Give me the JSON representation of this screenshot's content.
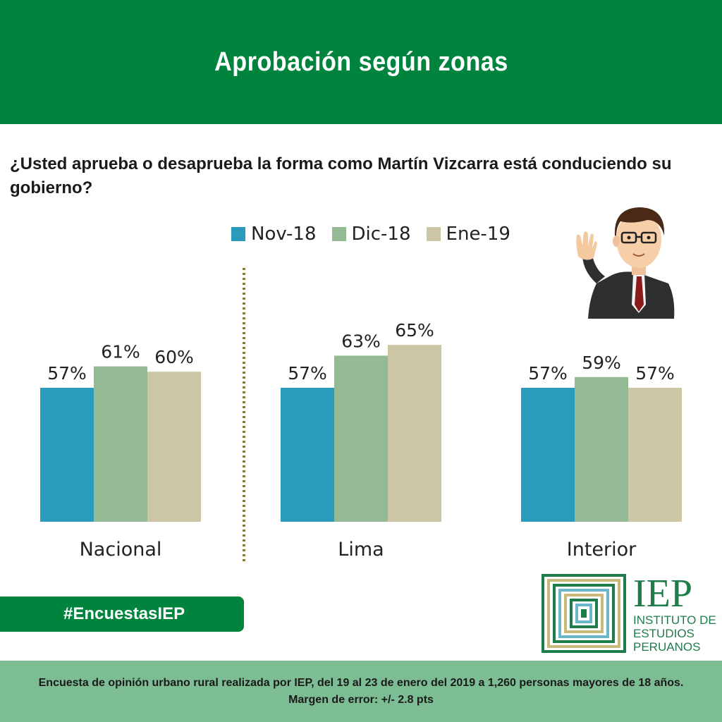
{
  "header": {
    "title": "Aprobación según zonas"
  },
  "question": "¿Usted aprueba o desaprueba la forma como Martín Vizcarra está conduciendo su gobierno?",
  "legend": [
    {
      "label": "Nov-18",
      "color": "#2a9bbd"
    },
    {
      "label": "Dic-18",
      "color": "#93b995"
    },
    {
      "label": "Ene-19",
      "color": "#cdc6a5"
    }
  ],
  "chart_data": {
    "type": "bar",
    "title": "Aprobación según zonas",
    "categories": [
      "Nacional",
      "Lima",
      "Interior"
    ],
    "series": [
      {
        "name": "Nov-18",
        "values": [
          57,
          57,
          57
        ],
        "color": "#2a9bbd"
      },
      {
        "name": "Dic-18",
        "values": [
          61,
          63,
          59
        ],
        "color": "#93b995"
      },
      {
        "name": "Ene-19",
        "values": [
          60,
          65,
          57
        ],
        "color": "#cdc6a5"
      }
    ],
    "data_labels": [
      [
        "57%",
        "57%",
        "57%"
      ],
      [
        "61%",
        "63%",
        "59%"
      ],
      [
        "60%",
        "65%",
        "57%"
      ]
    ],
    "ylim": [
      32,
      70
    ],
    "grid": false,
    "legend_position": "top-center",
    "separator_after_first_group": true
  },
  "hashtag": "#EncuestasIEP",
  "logo": {
    "name": "IEP",
    "line1": "INSTITUTO DE",
    "line2": "ESTUDIOS",
    "line3": "PERUANOS"
  },
  "footer": "Encuesta de opinión urbano rural realizada por IEP, del 19 al 23 de enero del 2019 a 1,260 personas mayores de 18 años. Margen de error: +/- 2.8 pts",
  "icons": {
    "figure": "waving-man-icon",
    "logo": "iep-logo-icon"
  }
}
